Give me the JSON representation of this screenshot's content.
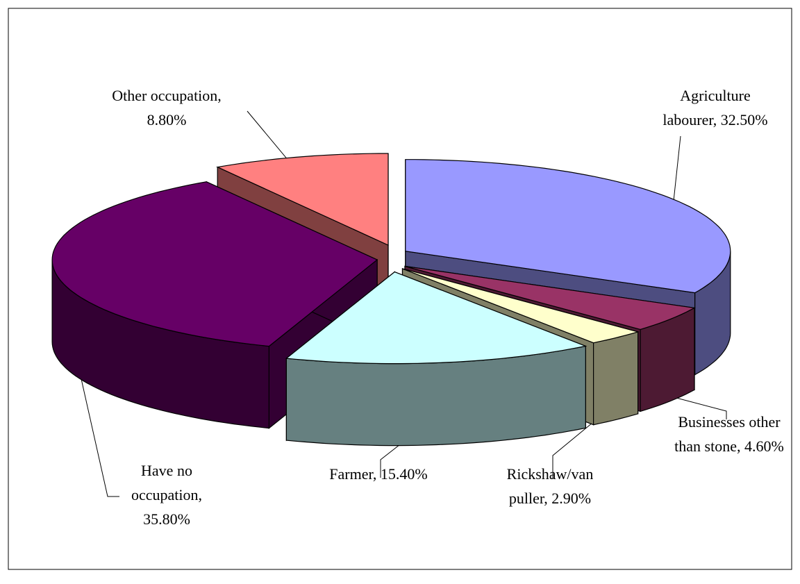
{
  "chart_data": {
    "type": "pie3d",
    "labels": [
      [
        "Agriculture",
        "labourer, 32.50%"
      ],
      [
        "Businesses other",
        "than stone, 4.60%"
      ],
      [
        "Rickshaw/van",
        "puller, 2.90%"
      ],
      [
        "Farmer, 15.40%"
      ],
      [
        "Have no",
        "occupation,",
        "35.80%"
      ],
      [
        "Other occupation,",
        "8.80%"
      ]
    ],
    "values": [
      32.5,
      4.6,
      2.9,
      15.4,
      35.8,
      8.8
    ],
    "colors": [
      "#9999ff",
      "#993366",
      "#ffffcc",
      "#ccffff",
      "#660066",
      "#ff8080"
    ]
  }
}
